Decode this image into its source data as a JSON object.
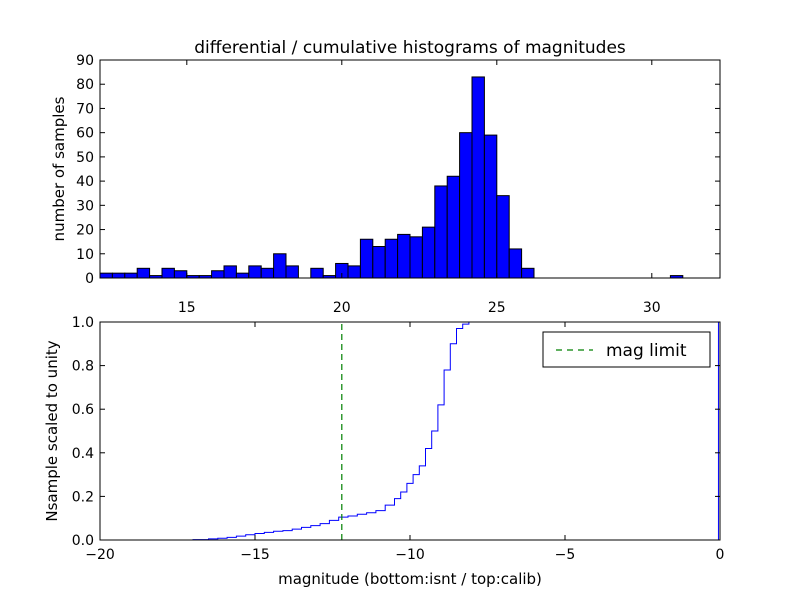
{
  "figure_title": "differential / cumulative histograms of magnitudes",
  "chart_data": [
    {
      "type": "bar",
      "title": "differential / cumulative histograms of magnitudes",
      "xlabel": "",
      "ylabel": "number of samples",
      "xlim": [
        12.2,
        32.2
      ],
      "ylim": [
        0,
        90
      ],
      "xticks": [
        15,
        20,
        25,
        30
      ],
      "yticks": [
        0,
        10,
        20,
        30,
        40,
        50,
        60,
        70,
        80,
        90
      ],
      "bin_start": 12.2,
      "bin_width": 0.4,
      "values": [
        2,
        2,
        2,
        4,
        1,
        4,
        3,
        1,
        1,
        3,
        5,
        2,
        5,
        4,
        10,
        5,
        0,
        4,
        1,
        6,
        5,
        16,
        13,
        16,
        18,
        17,
        21,
        38,
        42,
        60,
        83,
        59,
        34,
        12,
        4,
        0,
        0,
        0,
        0,
        0,
        0,
        0,
        0,
        0,
        0,
        0,
        1,
        0,
        0,
        0
      ],
      "color": "#0000ff",
      "grid": false
    },
    {
      "type": "line",
      "title": "",
      "xlabel": "magnitude (bottom:isnt / top:calib)",
      "ylabel": "Nsample scaled to unity",
      "xlim": [
        -20,
        0
      ],
      "ylim": [
        0,
        1.0
      ],
      "xticks": [
        -20,
        -15,
        -10,
        -5,
        0
      ],
      "yticks": [
        0.0,
        0.2,
        0.4,
        0.6,
        0.8,
        1.0
      ],
      "legend_position": "top-right",
      "series": [
        {
          "name": "",
          "style": "steps",
          "color": "#0000ff",
          "x": [
            -20,
            -17.0,
            -16.5,
            -16.2,
            -15.9,
            -15.6,
            -15.3,
            -15.0,
            -14.7,
            -14.4,
            -14.1,
            -13.8,
            -13.5,
            -13.2,
            -12.9,
            -12.6,
            -12.3,
            -12.0,
            -11.7,
            -11.4,
            -11.1,
            -10.8,
            -10.5,
            -10.3,
            -10.1,
            -9.9,
            -9.7,
            -9.5,
            -9.3,
            -9.1,
            -8.9,
            -8.7,
            -8.5,
            -8.3,
            -8.1,
            -7.9,
            -7.7,
            -7.5,
            -7.3,
            -0.05
          ],
          "y": [
            0,
            0.002,
            0.005,
            0.008,
            0.012,
            0.018,
            0.024,
            0.03,
            0.035,
            0.04,
            0.043,
            0.05,
            0.058,
            0.066,
            0.075,
            0.09,
            0.105,
            0.11,
            0.118,
            0.125,
            0.135,
            0.16,
            0.19,
            0.22,
            0.26,
            0.3,
            0.34,
            0.42,
            0.5,
            0.62,
            0.78,
            0.9,
            0.97,
            0.99,
            1.0,
            1.0,
            1.0,
            1.0,
            1.0,
            1.0
          ]
        },
        {
          "name": "mag limit",
          "style": "vline-dashed",
          "color": "#008000",
          "x": [
            -12.2,
            -12.2
          ],
          "y": [
            0,
            1.0
          ]
        }
      ]
    }
  ]
}
